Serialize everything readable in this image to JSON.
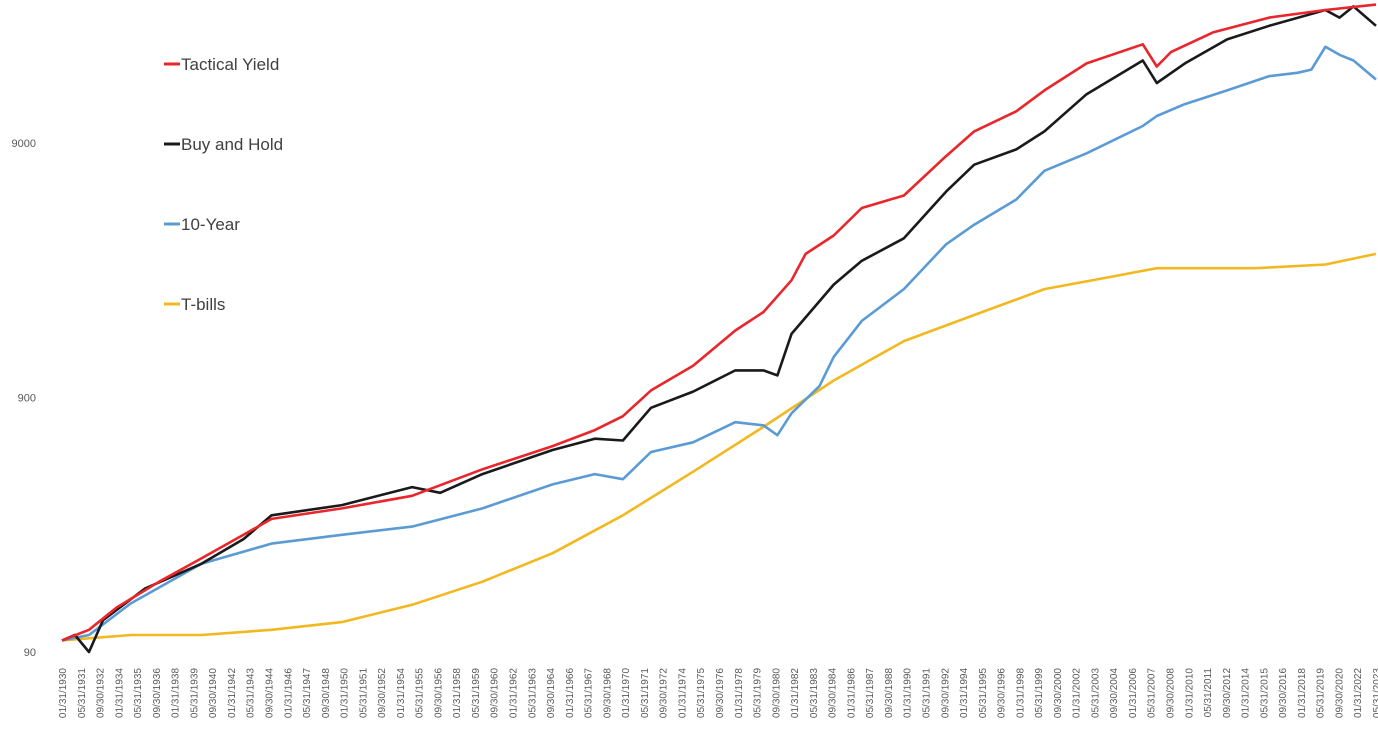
{
  "chart_data": {
    "type": "line",
    "title": "",
    "xlabel": "",
    "ylabel": "",
    "y_scale": "log",
    "ylim": [
      90,
      30000
    ],
    "y_ticks": [
      {
        "value": 90,
        "label": "90"
      },
      {
        "value": 900,
        "label": "900"
      },
      {
        "value": 9000,
        "label": "9000"
      }
    ],
    "grid": false,
    "legend_position": "top-left",
    "x_tick_labels": [
      "01/31/1930",
      "05/31/1931",
      "09/30/1932",
      "01/31/1934",
      "05/31/1935",
      "09/30/1936",
      "01/31/1938",
      "05/31/1939",
      "09/30/1940",
      "01/31/1942",
      "05/31/1943",
      "09/30/1944",
      "01/31/1946",
      "05/31/1947",
      "09/30/1948",
      "01/31/1950",
      "05/31/1951",
      "09/30/1952",
      "01/31/1954",
      "05/31/1955",
      "09/30/1956",
      "01/31/1958",
      "05/31/1959",
      "09/30/1960",
      "01/31/1962",
      "05/31/1963",
      "09/30/1964",
      "01/31/1966",
      "05/31/1967",
      "09/30/1968",
      "01/31/1970",
      "05/31/1971",
      "09/30/1972",
      "01/31/1974",
      "05/31/1975",
      "09/30/1976",
      "01/31/1978",
      "05/31/1979",
      "09/30/1980",
      "01/31/1982",
      "05/31/1983",
      "09/30/1984",
      "01/31/1986",
      "05/31/1987",
      "09/30/1988",
      "01/31/1990",
      "05/31/1991",
      "09/30/1992",
      "01/31/1994",
      "05/31/1995",
      "09/30/1996",
      "01/31/1998",
      "05/31/1999",
      "09/30/2000",
      "01/31/2002",
      "05/31/2003",
      "09/30/2004",
      "01/31/2006",
      "05/31/2007",
      "09/30/2008",
      "01/31/2010",
      "05/31/2011",
      "09/30/2012",
      "01/31/2014",
      "05/31/2015",
      "09/30/2016",
      "01/31/2018",
      "05/31/2019",
      "09/30/2020",
      "01/31/2022",
      "05/31/2023"
    ],
    "x_range": [
      1930.08,
      2023.6
    ],
    "series": [
      {
        "name": "Tactical Yield",
        "color": "#e8262b",
        "points": [
          [
            1930.08,
            100
          ],
          [
            1932,
            110
          ],
          [
            1934,
            135
          ],
          [
            1937,
            170
          ],
          [
            1940,
            210
          ],
          [
            1943,
            260
          ],
          [
            1945,
            300
          ],
          [
            1950,
            330
          ],
          [
            1955,
            370
          ],
          [
            1960,
            470
          ],
          [
            1965,
            580
          ],
          [
            1968,
            670
          ],
          [
            1970,
            760
          ],
          [
            1972,
            960
          ],
          [
            1975,
            1200
          ],
          [
            1978,
            1650
          ],
          [
            1980,
            1950
          ],
          [
            1982,
            2600
          ],
          [
            1983,
            3300
          ],
          [
            1985,
            3900
          ],
          [
            1987,
            5000
          ],
          [
            1990,
            5600
          ],
          [
            1993,
            8000
          ],
          [
            1995,
            10000
          ],
          [
            1998,
            12000
          ],
          [
            2000,
            14500
          ],
          [
            2003,
            18500
          ],
          [
            2007,
            22000
          ],
          [
            2008,
            18000
          ],
          [
            2009,
            20500
          ],
          [
            2012,
            24500
          ],
          [
            2016,
            28000
          ],
          [
            2020,
            30000
          ],
          [
            2023.6,
            31500
          ]
        ]
      },
      {
        "name": "Buy and Hold",
        "color": "#1a1a1a",
        "points": [
          [
            1930.08,
            100
          ],
          [
            1931,
            105
          ],
          [
            1932,
            90
          ],
          [
            1933,
            120
          ],
          [
            1936,
            160
          ],
          [
            1940,
            200
          ],
          [
            1943,
            250
          ],
          [
            1945,
            310
          ],
          [
            1950,
            340
          ],
          [
            1955,
            400
          ],
          [
            1957,
            380
          ],
          [
            1960,
            450
          ],
          [
            1965,
            560
          ],
          [
            1968,
            620
          ],
          [
            1970,
            610
          ],
          [
            1972,
            820
          ],
          [
            1975,
            950
          ],
          [
            1978,
            1150
          ],
          [
            1980,
            1150
          ],
          [
            1981,
            1100
          ],
          [
            1982,
            1600
          ],
          [
            1985,
            2500
          ],
          [
            1987,
            3100
          ],
          [
            1990,
            3800
          ],
          [
            1993,
            5800
          ],
          [
            1995,
            7400
          ],
          [
            1998,
            8500
          ],
          [
            2000,
            10000
          ],
          [
            2003,
            14000
          ],
          [
            2007,
            19000
          ],
          [
            2008,
            15500
          ],
          [
            2010,
            18500
          ],
          [
            2013,
            23000
          ],
          [
            2016,
            26000
          ],
          [
            2020,
            30000
          ],
          [
            2021,
            28000
          ],
          [
            2022,
            31000
          ],
          [
            2023.6,
            26000
          ]
        ]
      },
      {
        "name": "10-Year",
        "color": "#5b9bd5",
        "points": [
          [
            1930.08,
            100
          ],
          [
            1932,
            105
          ],
          [
            1935,
            140
          ],
          [
            1940,
            200
          ],
          [
            1945,
            240
          ],
          [
            1950,
            260
          ],
          [
            1955,
            280
          ],
          [
            1960,
            330
          ],
          [
            1965,
            410
          ],
          [
            1968,
            450
          ],
          [
            1970,
            430
          ],
          [
            1972,
            550
          ],
          [
            1975,
            600
          ],
          [
            1978,
            720
          ],
          [
            1980,
            700
          ],
          [
            1981,
            640
          ],
          [
            1982,
            780
          ],
          [
            1984,
            1000
          ],
          [
            1985,
            1300
          ],
          [
            1987,
            1800
          ],
          [
            1990,
            2400
          ],
          [
            1993,
            3600
          ],
          [
            1995,
            4300
          ],
          [
            1998,
            5400
          ],
          [
            2000,
            7000
          ],
          [
            2003,
            8200
          ],
          [
            2007,
            10500
          ],
          [
            2008,
            11500
          ],
          [
            2010,
            12800
          ],
          [
            2013,
            14500
          ],
          [
            2016,
            16500
          ],
          [
            2018,
            17000
          ],
          [
            2019,
            17500
          ],
          [
            2020,
            21500
          ],
          [
            2021,
            20000
          ],
          [
            2022,
            19000
          ],
          [
            2023.6,
            16000
          ]
        ]
      },
      {
        "name": "T-bills",
        "color": "#f2b81f",
        "points": [
          [
            1930.08,
            100
          ],
          [
            1935,
            105
          ],
          [
            1940,
            105
          ],
          [
            1945,
            110
          ],
          [
            1950,
            118
          ],
          [
            1955,
            138
          ],
          [
            1960,
            170
          ],
          [
            1965,
            220
          ],
          [
            1970,
            310
          ],
          [
            1975,
            460
          ],
          [
            1980,
            690
          ],
          [
            1985,
            1050
          ],
          [
            1990,
            1500
          ],
          [
            1995,
            1900
          ],
          [
            2000,
            2400
          ],
          [
            2005,
            2700
          ],
          [
            2008,
            2900
          ],
          [
            2010,
            2900
          ],
          [
            2015,
            2900
          ],
          [
            2020,
            3000
          ],
          [
            2023.6,
            3300
          ]
        ]
      }
    ]
  }
}
